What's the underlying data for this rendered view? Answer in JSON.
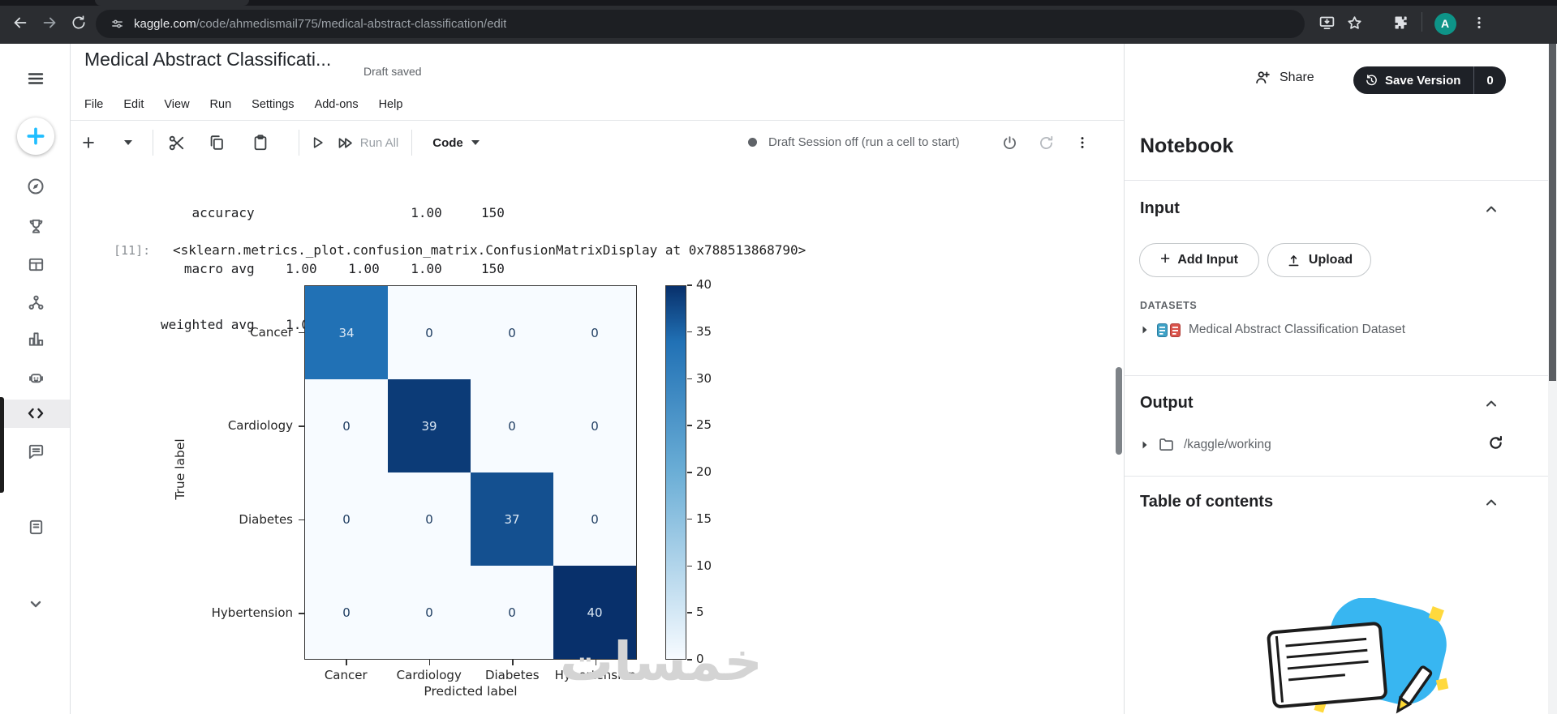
{
  "browser": {
    "url_host": "kaggle.com",
    "url_path": "/code/ahmedismail775/medical-abstract-classification/edit",
    "avatar_letter": "A",
    "avatar_color": "#0e9488",
    "icons": [
      "back-arrow",
      "forward-arrow",
      "refresh",
      "site-settings-sliders",
      "install-app",
      "bookmark-star",
      "extensions-puzzle",
      "profile-avatar",
      "browser-menu-kebab"
    ]
  },
  "header": {
    "title": "Medical Abstract Classificati...",
    "draft_status": "Draft saved",
    "share_label": "Share",
    "save_version_label": "Save Version",
    "version_count": "0",
    "menus": [
      "File",
      "Edit",
      "View",
      "Run",
      "Settings",
      "Add-ons",
      "Help"
    ]
  },
  "toolbar": {
    "run_all_label": "Run All",
    "cell_type_label": "Code",
    "session_status": "Draft Session off (run a cell to start)",
    "icons": [
      "add-cell-plus",
      "add-cell-caret",
      "cut-scissors",
      "copy",
      "paste-clipboard",
      "run-cell-play",
      "run-all-fast-forward",
      "power",
      "restart-session",
      "toolbar-kebab"
    ]
  },
  "sidebar": {
    "items": [
      "hamburger-menu",
      "create-plus",
      "explore-compass",
      "competitions-trophy",
      "datasets-grid",
      "models-network",
      "benchmarks-chart",
      "agents-robot",
      "code-editor",
      "discussions-comment",
      "learn-book",
      "more-chevron"
    ],
    "accent_color": "#20beff"
  },
  "notebook_output": {
    "metrics_lines": [
      "    accuracy                    1.00     150",
      "   macro avg    1.00    1.00    1.00     150",
      "weighted avg    1.00    1.00    1.00     150"
    ],
    "output_prompt": "[11]:",
    "output_repr": "<sklearn.metrics._plot.confusion_matrix.ConfusionMatrixDisplay at 0x788513868790>"
  },
  "chart_data": {
    "type": "heatmap",
    "title": "",
    "xlabel": "Predicted label",
    "ylabel": "True label",
    "categories": [
      "Cancer",
      "Cardiology",
      "Diabetes",
      "Hybertension"
    ],
    "matrix": [
      [
        34,
        0,
        0,
        0
      ],
      [
        0,
        39,
        0,
        0
      ],
      [
        0,
        0,
        37,
        0
      ],
      [
        0,
        0,
        0,
        40
      ]
    ],
    "vmin": 0,
    "vmax": 40,
    "colorbar_ticks": [
      0,
      5,
      10,
      15,
      20,
      25,
      30,
      35,
      40
    ],
    "colormap": "Blues",
    "color_dark": "#08306b",
    "color_light": "#f7fbff",
    "grid": false,
    "legend": "colorbar-right"
  },
  "right_panel": {
    "title": "Notebook",
    "input_section": "Input",
    "add_input_label": "Add Input",
    "upload_label": "Upload",
    "datasets_label": "DATASETS",
    "dataset_name": "Medical Abstract Classification Dataset",
    "output_section": "Output",
    "output_path": "/kaggle/working",
    "toc_section": "Table of contents"
  },
  "watermark": "خمسات"
}
